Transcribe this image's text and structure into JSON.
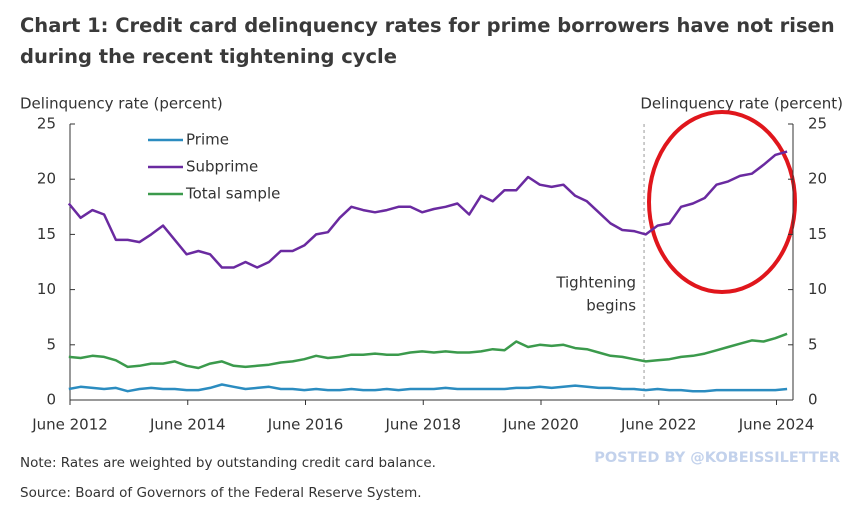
{
  "chart_data": {
    "type": "line",
    "title": "Chart 1: Credit card delinquency rates for prime borrowers have not risen during the recent tightening cycle",
    "ylabel": "Delinquency rate (percent)",
    "y2label": "Delinquency rate (percent)",
    "x": [
      2012.4,
      2012.6,
      2012.8,
      2013.0,
      2013.2,
      2013.4,
      2013.6,
      2013.8,
      2014.0,
      2014.2,
      2014.4,
      2014.6,
      2014.8,
      2015.0,
      2015.2,
      2015.4,
      2015.6,
      2015.8,
      2016.0,
      2016.2,
      2016.4,
      2016.6,
      2016.8,
      2017.0,
      2017.2,
      2017.4,
      2017.6,
      2017.8,
      2018.0,
      2018.2,
      2018.4,
      2018.6,
      2018.8,
      2019.0,
      2019.2,
      2019.4,
      2019.6,
      2019.8,
      2020.0,
      2020.2,
      2020.4,
      2020.6,
      2020.8,
      2021.0,
      2021.2,
      2021.4,
      2021.6,
      2021.8,
      2022.0,
      2022.2,
      2022.4,
      2022.6,
      2022.8,
      2023.0,
      2023.2,
      2023.4,
      2023.6,
      2023.8,
      2024.0,
      2024.2,
      2024.4,
      2024.6
    ],
    "series": [
      {
        "name": "Prime",
        "color": "#2b8cc0",
        "values": [
          1.0,
          1.2,
          1.1,
          1.0,
          1.1,
          0.8,
          1.0,
          1.1,
          1.0,
          1.0,
          0.9,
          0.9,
          1.1,
          1.4,
          1.2,
          1.0,
          1.1,
          1.2,
          1.0,
          1.0,
          0.9,
          1.0,
          0.9,
          0.9,
          1.0,
          0.9,
          0.9,
          1.0,
          0.9,
          1.0,
          1.0,
          1.0,
          1.1,
          1.0,
          1.0,
          1.0,
          1.0,
          1.0,
          1.1,
          1.1,
          1.2,
          1.1,
          1.2,
          1.3,
          1.2,
          1.1,
          1.1,
          1.0,
          1.0,
          0.9,
          1.0,
          0.9,
          0.9,
          0.8,
          0.8,
          0.9,
          0.9,
          0.9,
          0.9,
          0.9,
          0.9,
          1.0
        ]
      },
      {
        "name": "Subprime",
        "color": "#6a2aa0",
        "values": [
          17.8,
          16.5,
          17.2,
          16.8,
          14.5,
          14.5,
          14.3,
          15.0,
          15.8,
          14.5,
          13.2,
          13.5,
          13.2,
          12.0,
          12.0,
          12.5,
          12.0,
          12.5,
          13.5,
          13.5,
          14.0,
          15.0,
          15.2,
          16.5,
          17.5,
          17.2,
          17.0,
          17.2,
          17.5,
          17.5,
          17.0,
          17.3,
          17.5,
          17.8,
          16.8,
          18.5,
          18.0,
          19.0,
          19.0,
          20.2,
          19.5,
          19.3,
          19.5,
          18.5,
          18.0,
          17.0,
          16.0,
          15.4,
          15.3,
          15.0,
          15.8,
          16.0,
          17.5,
          17.8,
          18.3,
          19.5,
          19.8,
          20.3,
          20.5,
          21.3,
          22.2,
          22.5
        ]
      },
      {
        "name": "Total sample",
        "color": "#3b9a4c",
        "values": [
          3.9,
          3.8,
          4.0,
          3.9,
          3.6,
          3.0,
          3.1,
          3.3,
          3.3,
          3.5,
          3.1,
          2.9,
          3.3,
          3.5,
          3.1,
          3.0,
          3.1,
          3.2,
          3.4,
          3.5,
          3.7,
          4.0,
          3.8,
          3.9,
          4.1,
          4.1,
          4.2,
          4.1,
          4.1,
          4.3,
          4.4,
          4.3,
          4.4,
          4.3,
          4.3,
          4.4,
          4.6,
          4.5,
          5.3,
          4.8,
          5.0,
          4.9,
          5.0,
          4.7,
          4.6,
          4.3,
          4.0,
          3.9,
          3.7,
          3.5,
          3.6,
          3.7,
          3.9,
          4.0,
          4.2,
          4.5,
          4.8,
          5.1,
          5.4,
          5.3,
          5.6,
          6.0
        ]
      }
    ],
    "xlim": [
      2012.42,
      2024.7
    ],
    "xticks": [
      {
        "value": 2012.42,
        "label": "June 2012"
      },
      {
        "value": 2014.42,
        "label": "June 2014"
      },
      {
        "value": 2016.42,
        "label": "June 2016"
      },
      {
        "value": 2018.42,
        "label": "June 2018"
      },
      {
        "value": 2020.42,
        "label": "June 2020"
      },
      {
        "value": 2022.42,
        "label": "June 2022"
      },
      {
        "value": 2024.42,
        "label": "June 2024"
      }
    ],
    "ylim": [
      0,
      25
    ],
    "yticks": [
      0,
      5,
      10,
      15,
      20,
      25
    ],
    "y2lim": [
      0,
      25
    ],
    "y2ticks": [
      0,
      5,
      10,
      15,
      20,
      25
    ],
    "legend": "upper-left",
    "annotation": {
      "x": 2022.17,
      "lines": [
        "Tightening",
        "begins"
      ]
    },
    "note": "Note: Rates are weighted by outstanding credit card balance.",
    "source": "Source: Board of Governors of the Federal Reserve System.",
    "watermark": "POSTED BY @KOBEISSILETTER"
  }
}
